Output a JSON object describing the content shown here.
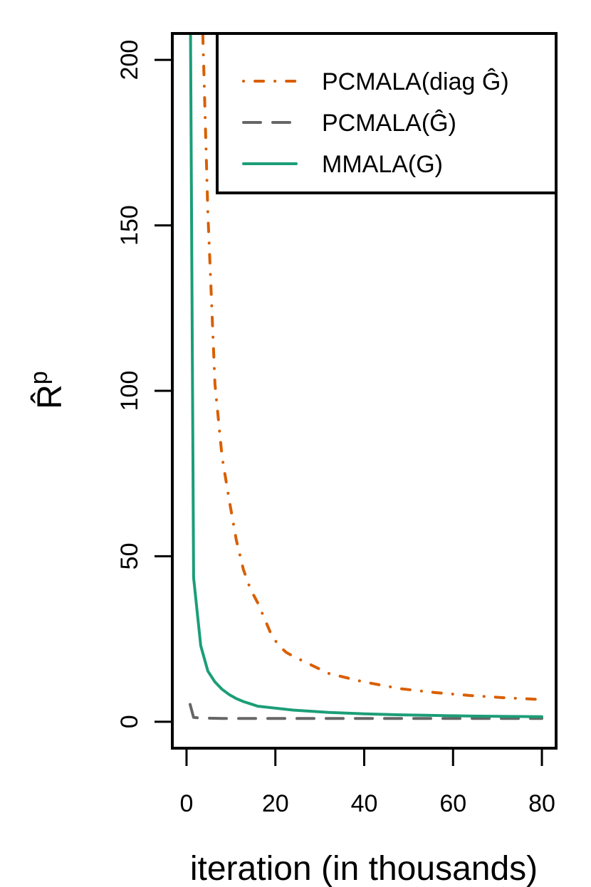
{
  "chart_data": {
    "type": "line",
    "title": "",
    "xlabel": "iteration (in thousands)",
    "ylabel_main": "R̂",
    "ylabel_sup": "p",
    "xlim": [
      -3.2,
      83.2
    ],
    "ylim": [
      -8,
      208
    ],
    "xticks": [
      0,
      20,
      40,
      60,
      80
    ],
    "yticks": [
      0,
      50,
      100,
      150,
      200
    ],
    "grid": false,
    "legend_position": "top-right",
    "series": [
      {
        "name": "PCMALA(diag Ĝ)",
        "color": "#d95f02",
        "style": "dotdash",
        "x": [
          3.2,
          4.8,
          6.4,
          8,
          9.6,
          11.2,
          12.8,
          14.4,
          16,
          17.6,
          19.2,
          20.8,
          22.4,
          24,
          32,
          40,
          48,
          56,
          64,
          72,
          80
        ],
        "y": [
          230,
          154,
          102,
          80,
          67,
          55,
          46,
          40,
          36,
          31,
          26,
          23,
          21,
          19.8,
          14.6,
          12,
          10,
          8.8,
          7.9,
          7.2,
          6.7
        ]
      },
      {
        "name": "PCMALA(Ĝ)",
        "color": "#666666",
        "style": "dashed",
        "x": [
          0.8,
          1.6,
          3.2,
          8,
          16,
          24,
          32,
          40,
          48,
          56,
          64,
          72,
          80
        ],
        "y": [
          5.2,
          1.3,
          1.1,
          1.0,
          1.0,
          1.0,
          1.0,
          1.0,
          1.0,
          1.0,
          1.0,
          1.0,
          1.0
        ]
      },
      {
        "name": "MMALA(G)",
        "color": "#1b9e77",
        "style": "solid",
        "x": [
          0.8,
          1.6,
          3.2,
          4.8,
          6.4,
          8,
          9.6,
          11.2,
          12.8,
          14.4,
          16,
          24,
          32,
          40,
          48,
          56,
          64,
          72,
          80
        ],
        "y": [
          230,
          43.5,
          23,
          15.3,
          12,
          9.8,
          8.2,
          7,
          6.1,
          5.4,
          4.7,
          3.5,
          2.8,
          2.4,
          2.1,
          1.9,
          1.7,
          1.6,
          1.5
        ]
      }
    ]
  }
}
